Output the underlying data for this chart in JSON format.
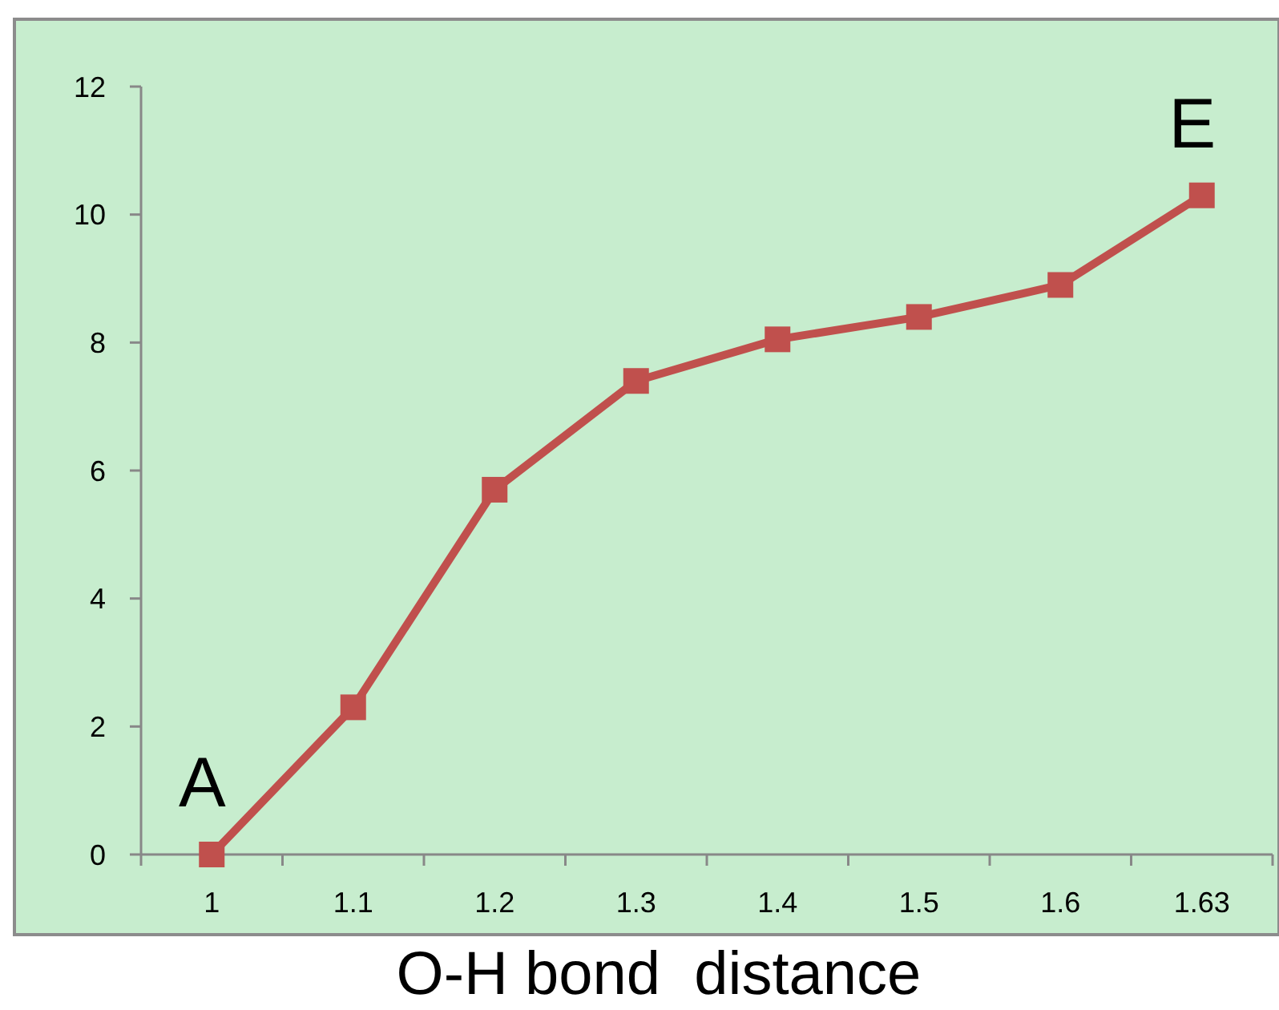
{
  "chart_data": {
    "type": "line",
    "xlabel": "O-H bond  distance",
    "categories": [
      "1",
      "1.1",
      "1.2",
      "1.3",
      "1.4",
      "1.5",
      "1.6",
      "1.63"
    ],
    "series": [
      {
        "color": "#c0504d",
        "values": [
          0,
          2.3,
          5.7,
          7.4,
          8.05,
          8.4,
          8.9,
          10.3
        ]
      }
    ],
    "ylim": [
      0,
      12
    ],
    "yticks": [
      0,
      2,
      4,
      6,
      8,
      10,
      12
    ],
    "marker": "square",
    "line_style": "solid",
    "annotations": [
      {
        "text": "A",
        "x": "1",
        "y": 0
      },
      {
        "text": "E",
        "x": "1.63",
        "y": 10.3
      }
    ]
  }
}
